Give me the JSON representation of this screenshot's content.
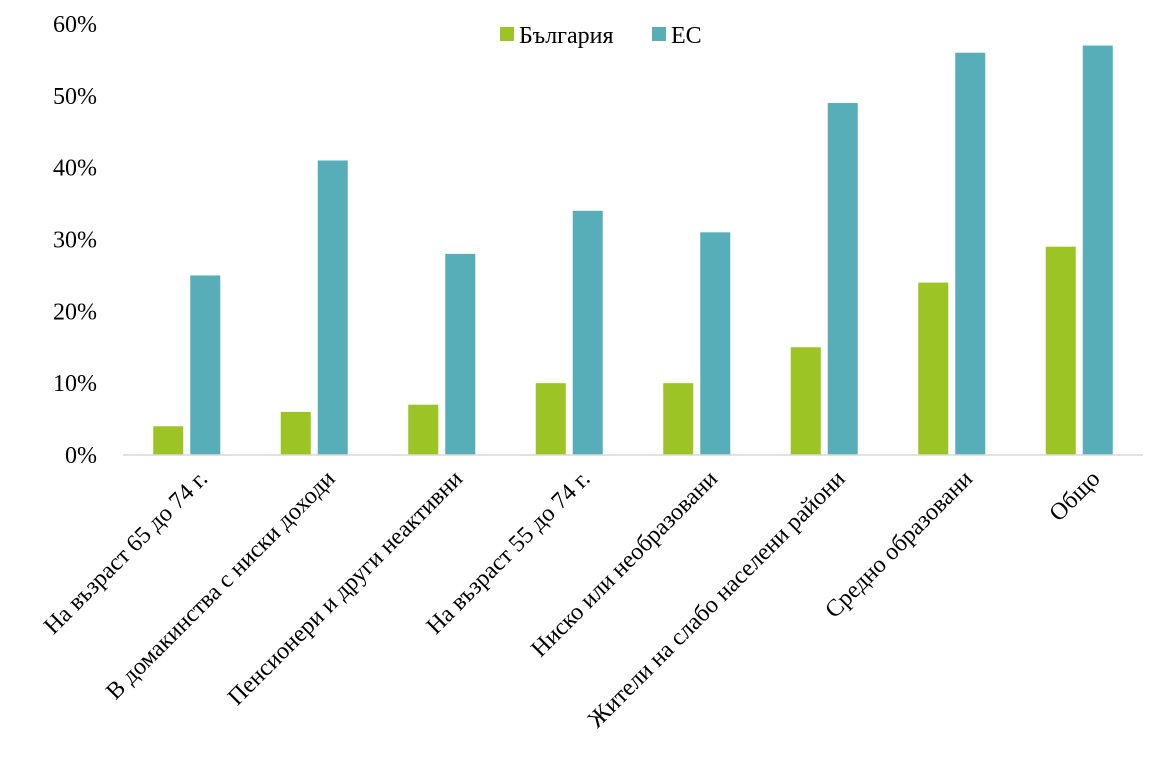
{
  "chart_data": {
    "type": "bar",
    "categories": [
      "На възраст 65 до 74 г.",
      "В домакинства с ниски доходи",
      "Пенсионери и други неактивни",
      "На възраст 55 до 74 г.",
      "Ниско или необразовани",
      "Жители на слабо населени райони",
      "Средно образовани",
      "Общо"
    ],
    "series": [
      {
        "name": "България",
        "color": "#9BC424",
        "values": [
          4,
          6,
          7,
          10,
          10,
          15,
          24,
          29
        ]
      },
      {
        "name": "ЕС",
        "color": "#58AEB8",
        "values": [
          25,
          41,
          28,
          34,
          31,
          49,
          56,
          57
        ]
      }
    ],
    "ylim": [
      0,
      60
    ],
    "yticks": [
      "0%",
      "10%",
      "20%",
      "30%",
      "40%",
      "50%",
      "60%"
    ],
    "legend_position": "top-center",
    "grid": false
  }
}
